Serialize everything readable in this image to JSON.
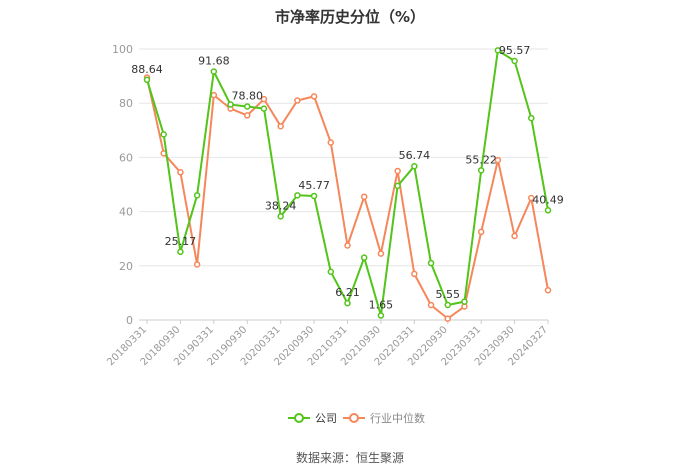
{
  "title": "市净率历史分位（%）",
  "source": "数据来源：恒生聚源",
  "colors": {
    "company": "#52c41a",
    "industry": "#f5875a",
    "grid": "#e6e6e6",
    "axis": "#999999",
    "label": "#333333"
  },
  "legend": [
    {
      "name": "公司",
      "color": "#52c41a"
    },
    {
      "name": "行业中位数",
      "color": "#f5875a"
    }
  ],
  "chart_data": {
    "type": "line",
    "title": "市净率历史分位（%）",
    "ylim": [
      0,
      100
    ],
    "yticks": [
      0,
      20,
      40,
      60,
      80,
      100
    ],
    "grid": true,
    "legend_position": "bottom-center",
    "x": [
      "20180331",
      "20180630",
      "20180930",
      "20181231",
      "20190331",
      "20190630",
      "20190930",
      "20191231",
      "20200331",
      "20200630",
      "20200930",
      "20201231",
      "20210331",
      "20210630",
      "20210930",
      "20211231",
      "20220331",
      "20220630",
      "20220930",
      "20221231",
      "20230331",
      "20230630",
      "20230930",
      "20231231",
      "20240327"
    ],
    "xtick_labels": [
      "20180331",
      "20180930",
      "20190331",
      "20190930",
      "20200331",
      "20200930",
      "20210331",
      "20210930",
      "20220331",
      "20220930",
      "20230331",
      "20230930",
      "20240327"
    ],
    "series": [
      {
        "name": "公司",
        "values": [
          88.64,
          68.5,
          25.17,
          46.0,
          91.68,
          79.5,
          78.8,
          78.0,
          38.24,
          46.0,
          45.77,
          17.8,
          6.21,
          23.0,
          1.65,
          49.5,
          56.74,
          21.0,
          5.55,
          6.8,
          55.22,
          99.5,
          95.57,
          74.5,
          40.49
        ]
      },
      {
        "name": "行业中位数",
        "values": [
          89.5,
          61.5,
          54.5,
          20.5,
          83.0,
          78.0,
          75.5,
          81.5,
          71.5,
          81.0,
          82.5,
          65.5,
          27.5,
          45.5,
          24.5,
          55.0,
          17.0,
          5.5,
          0.5,
          5.0,
          32.5,
          59.0,
          31.0,
          45.0,
          11.0
        ]
      }
    ],
    "data_labels": [
      {
        "series": "公司",
        "index": 0,
        "text": "88.64"
      },
      {
        "series": "公司",
        "index": 2,
        "text": "25.17"
      },
      {
        "series": "公司",
        "index": 4,
        "text": "91.68"
      },
      {
        "series": "公司",
        "index": 6,
        "text": "78.80"
      },
      {
        "series": "公司",
        "index": 8,
        "text": "38.24"
      },
      {
        "series": "公司",
        "index": 10,
        "text": "45.77"
      },
      {
        "series": "公司",
        "index": 12,
        "text": "6.21"
      },
      {
        "series": "公司",
        "index": 14,
        "text": "1.65"
      },
      {
        "series": "公司",
        "index": 16,
        "text": "56.74"
      },
      {
        "series": "公司",
        "index": 18,
        "text": "5.55"
      },
      {
        "series": "公司",
        "index": 20,
        "text": "55.22"
      },
      {
        "series": "公司",
        "index": 22,
        "text": "95.57"
      },
      {
        "series": "公司",
        "index": 24,
        "text": "40.49"
      }
    ]
  }
}
